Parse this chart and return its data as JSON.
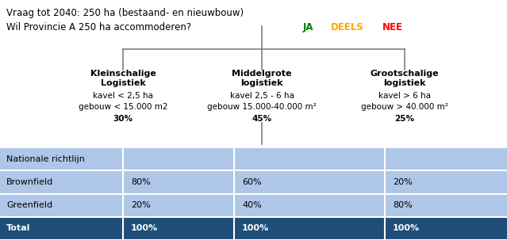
{
  "title_line1": "Vraag tot 2040: 250 ha (bestaand- en nieuwbouw)",
  "title_line2_prefix": "Wil Provincie A 250 ha accommoderen?",
  "title_line2_ja": "JA",
  "title_line2_deels": "DEELS",
  "title_line2_nee": "NEE",
  "color_ja": "#008000",
  "color_deels": "#FFA500",
  "color_nee": "#FF0000",
  "color_black": "#000000",
  "node_left_title": "Kleinschalige\nLogistiek",
  "node_left_line1": "kavel < 2,5 ha",
  "node_left_line2": "gebouw < 15.000 m2",
  "node_left_pct": "30%",
  "node_mid_title": "Middelgrote\nlogistiek",
  "node_mid_line1": "kavel 2,5 - 6 ha",
  "node_mid_line2": "gebouw 15.000-40.000 m²",
  "node_mid_pct": "45%",
  "node_right_title": "Grootschalige\nlogistiek",
  "node_right_line1": "kavel > 6 ha",
  "node_right_line2": "gebouw > 40.000 m²",
  "node_right_pct": "25%",
  "table_row0": [
    "Nationale richtlijn",
    "",
    "",
    ""
  ],
  "table_row1": [
    "Brownfield",
    "80%",
    "60%",
    "20%"
  ],
  "table_row2": [
    "Greenfield",
    "20%",
    "40%",
    "80%"
  ],
  "table_row3": [
    "Total",
    "100%",
    "100%",
    "100%"
  ],
  "table_bg_light": "#aec6e8",
  "table_bg_dark": "#1f4e79",
  "table_text_white": "#ffffff",
  "table_text_black": "#000000",
  "tree_color": "#808080",
  "figsize": [
    6.39,
    3.03
  ],
  "dpi": 100
}
